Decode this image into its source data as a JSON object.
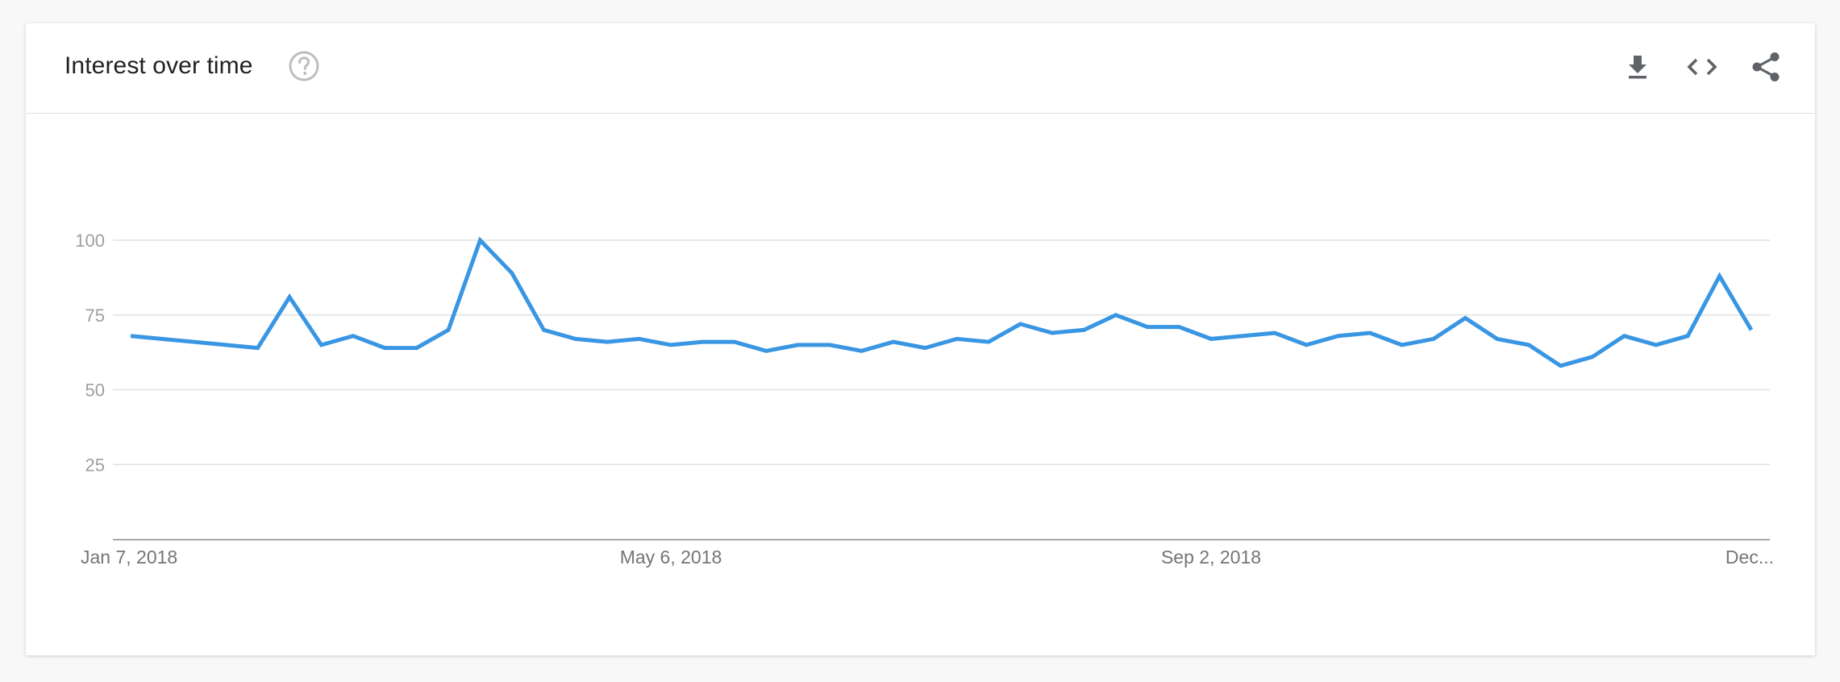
{
  "header": {
    "title": "Interest over time",
    "help_icon": "help-circle-icon",
    "actions": [
      {
        "name": "download-button",
        "icon": "download-icon"
      },
      {
        "name": "embed-button",
        "icon": "code-embed-icon"
      },
      {
        "name": "share-button",
        "icon": "share-icon"
      }
    ]
  },
  "colors": {
    "line": "#3996e3",
    "grid": "#e0e0e0",
    "axis": "#8a8a8a",
    "icon": "#5f6368",
    "help": "#bdbdbd"
  },
  "chart_data": {
    "type": "line",
    "title": "",
    "xlabel": "",
    "ylabel": "",
    "ylim": [
      0,
      100
    ],
    "yticks": [
      25,
      50,
      75,
      100
    ],
    "xtick_labels": [
      "Jan 7, 2018",
      "May 6, 2018",
      "Sep 2, 2018",
      "Dec..."
    ],
    "grid": true,
    "legend": "none",
    "series": [
      {
        "values": [
          68,
          64,
          81,
          65,
          68,
          64,
          64,
          70,
          100,
          89,
          70,
          67,
          66,
          67,
          65,
          66,
          66,
          63,
          65,
          65,
          63,
          66,
          64,
          67,
          66,
          72,
          69,
          70,
          75,
          71,
          71,
          67,
          68,
          69,
          65,
          68,
          69,
          65,
          67,
          74,
          67,
          65,
          58,
          61,
          68,
          65,
          68,
          88,
          70
        ],
        "index": [
          0,
          4,
          5,
          6,
          7,
          8,
          9,
          10,
          11,
          12,
          13,
          14,
          15,
          16,
          17,
          18,
          19,
          20,
          21,
          22,
          23,
          24,
          25,
          26,
          27,
          28,
          29,
          30,
          31,
          32,
          33,
          34,
          35,
          36,
          37,
          38,
          39,
          40,
          41,
          42,
          43,
          44,
          45,
          46,
          47,
          48,
          49,
          50,
          51
        ],
        "xticks_at_index": [
          0,
          17,
          34,
          51
        ]
      }
    ]
  }
}
